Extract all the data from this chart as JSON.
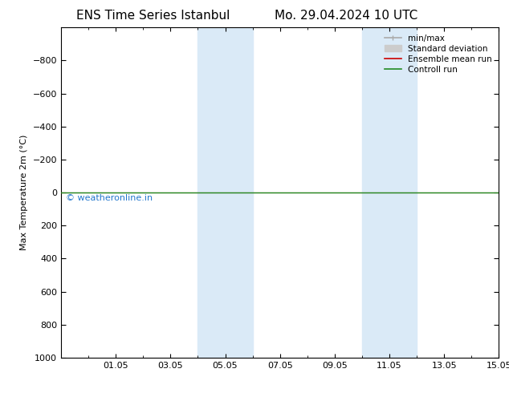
{
  "title_left": "ENS Time Series Istanbul",
  "title_right": "Mo. 29.04.2024 10 UTC",
  "ylabel": "Max Temperature 2m (°C)",
  "ylim": [
    -1000,
    1000
  ],
  "ylim_display_top": -1000,
  "ylim_display_bottom": 1000,
  "yticks": [
    -800,
    -600,
    -400,
    -200,
    0,
    200,
    400,
    600,
    800,
    1000
  ],
  "xlim": [
    0,
    16
  ],
  "xtick_labels": [
    "01.05",
    "03.05",
    "05.05",
    "07.05",
    "09.05",
    "11.05",
    "13.05",
    "15.05"
  ],
  "xtick_positions": [
    2,
    4,
    6,
    8,
    10,
    12,
    14,
    16
  ],
  "bg_color": "#ffffff",
  "plot_bg_color": "#ffffff",
  "shaded_bands": [
    {
      "x_start": 5,
      "x_end": 7,
      "color": "#daeaf7"
    },
    {
      "x_start": 11,
      "x_end": 13,
      "color": "#daeaf7"
    }
  ],
  "horizontal_line_y": 0,
  "horizontal_line_color_green": "#228B22",
  "horizontal_line_color_red": "#cc0000",
  "watermark_text": "© weatheronline.in",
  "watermark_color": "#2277cc",
  "legend_items": [
    {
      "label": "min/max",
      "color": "#aaaaaa",
      "lw": 1.2,
      "style": "line_with_bars"
    },
    {
      "label": "Standard deviation",
      "color": "#cccccc",
      "lw": 7,
      "style": "band"
    },
    {
      "label": "Ensemble mean run",
      "color": "#cc0000",
      "lw": 1.2,
      "style": "line"
    },
    {
      "label": "Controll run",
      "color": "#228B22",
      "lw": 1.2,
      "style": "line"
    }
  ],
  "tick_direction": "in",
  "font_size_title": 11,
  "font_size_axis": 8,
  "font_size_legend": 7.5,
  "font_size_ticks": 8,
  "font_size_watermark": 8
}
